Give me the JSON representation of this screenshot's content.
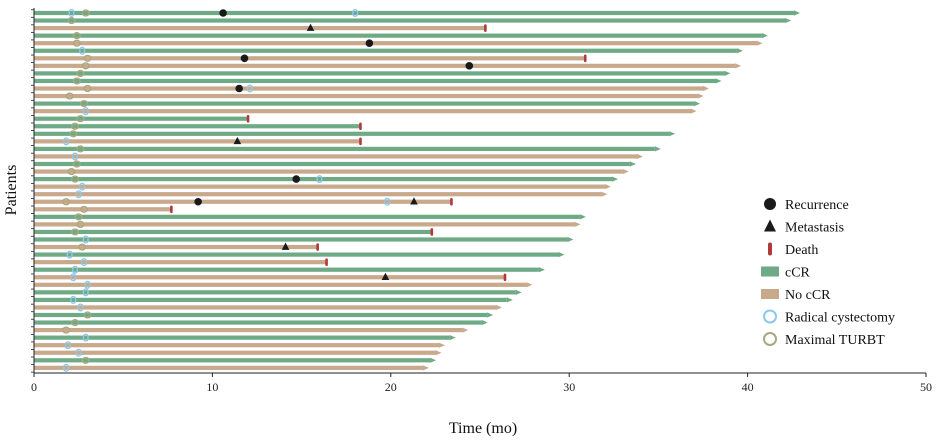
{
  "chart_data": {
    "type": "swimmer",
    "title": "",
    "xlabel": "Time (mo)",
    "ylabel": "Patients",
    "xlim": [
      0,
      50
    ],
    "xticks": [
      0,
      10,
      20,
      30,
      40,
      50
    ],
    "grid": false,
    "legend_position": "right",
    "colors": {
      "ccr": "#6FAA86",
      "no_ccr": "#C8A98C",
      "recurrence": "#1a1a1a",
      "metastasis": "#1a1a1a",
      "death": "#B03A3A",
      "cystectomy": "#8CC8EE",
      "turbt": "#A9A87E"
    },
    "legend": [
      {
        "key": "recurrence",
        "label": "Recurrence"
      },
      {
        "key": "metastasis",
        "label": "Metastasis"
      },
      {
        "key": "death",
        "label": "Death"
      },
      {
        "key": "ccr",
        "label": "cCR"
      },
      {
        "key": "no_ccr",
        "label": "No cCR"
      },
      {
        "key": "cystectomy",
        "label": "Radical cystectomy"
      },
      {
        "key": "turbt",
        "label": "Maximal TURBT"
      }
    ],
    "patients": [
      {
        "end": 42.6,
        "status": "cCR",
        "ongoing": true,
        "cystectomy": [
          2.1,
          18.0
        ],
        "turbt": [
          2.9
        ],
        "recurrence": [
          10.6
        ]
      },
      {
        "end": 42.1,
        "status": "cCR",
        "ongoing": true,
        "turbt": [
          2.1
        ]
      },
      {
        "end": 25.3,
        "status": "No cCR",
        "ongoing": false,
        "death": 25.3,
        "metastasis": [
          15.5
        ]
      },
      {
        "end": 40.8,
        "status": "cCR",
        "ongoing": true,
        "turbt": [
          2.4
        ]
      },
      {
        "end": 40.5,
        "status": "No cCR",
        "ongoing": true,
        "turbt": [
          2.4
        ],
        "recurrence": [
          18.8
        ]
      },
      {
        "end": 39.4,
        "status": "cCR",
        "ongoing": true,
        "cystectomy": [
          2.7
        ]
      },
      {
        "end": 30.9,
        "status": "No cCR",
        "ongoing": false,
        "death": 30.9,
        "turbt": [
          3.0
        ],
        "recurrence": [
          11.8
        ]
      },
      {
        "end": 39.3,
        "status": "No cCR",
        "ongoing": true,
        "turbt": [
          2.9
        ],
        "recurrence": [
          24.4
        ]
      },
      {
        "end": 38.7,
        "status": "cCR",
        "ongoing": true,
        "turbt": [
          2.6
        ]
      },
      {
        "end": 38.2,
        "status": "cCR",
        "ongoing": true,
        "turbt": [
          2.4
        ]
      },
      {
        "end": 37.5,
        "status": "No cCR",
        "ongoing": true,
        "turbt": [
          3.0
        ],
        "cystectomy": [
          12.1
        ],
        "recurrence": [
          11.5
        ]
      },
      {
        "end": 37.2,
        "status": "No cCR",
        "ongoing": true,
        "turbt": [
          2.0
        ]
      },
      {
        "end": 37.0,
        "status": "cCR",
        "ongoing": true,
        "turbt": [
          2.8
        ]
      },
      {
        "end": 36.8,
        "status": "No cCR",
        "ongoing": true,
        "cystectomy": [
          2.9
        ]
      },
      {
        "end": 12.0,
        "status": "cCR",
        "ongoing": false,
        "death": 12.0,
        "turbt": [
          2.6
        ]
      },
      {
        "end": 18.3,
        "status": "cCR",
        "ongoing": false,
        "death": 18.3,
        "turbt": [
          2.3
        ]
      },
      {
        "end": 35.6,
        "status": "cCR",
        "ongoing": true,
        "turbt": [
          2.2
        ]
      },
      {
        "end": 18.3,
        "status": "No cCR",
        "ongoing": false,
        "death": 18.3,
        "cystectomy": [
          1.8
        ],
        "metastasis": [
          11.4
        ]
      },
      {
        "end": 34.8,
        "status": "cCR",
        "ongoing": true,
        "turbt": [
          2.6
        ]
      },
      {
        "end": 33.8,
        "status": "No cCR",
        "ongoing": true,
        "cystectomy": [
          2.3
        ]
      },
      {
        "end": 33.4,
        "status": "cCR",
        "ongoing": true,
        "turbt": [
          2.4
        ]
      },
      {
        "end": 33.0,
        "status": "No cCR",
        "ongoing": true,
        "turbt": [
          2.1
        ]
      },
      {
        "end": 32.4,
        "status": "cCR",
        "ongoing": true,
        "turbt": [
          2.3
        ],
        "cystectomy": [
          16.0
        ],
        "recurrence": [
          14.7
        ]
      },
      {
        "end": 32.0,
        "status": "No cCR",
        "ongoing": true,
        "cystectomy": [
          2.7
        ]
      },
      {
        "end": 31.8,
        "status": "No cCR",
        "ongoing": true,
        "cystectomy": [
          2.5
        ]
      },
      {
        "end": 23.4,
        "status": "No cCR",
        "ongoing": false,
        "death": 23.4,
        "turbt": [
          1.8
        ],
        "cystectomy": [
          19.8
        ],
        "recurrence": [
          9.2
        ],
        "metastasis": [
          21.3
        ]
      },
      {
        "end": 7.7,
        "status": "No cCR",
        "ongoing": false,
        "death": 7.7,
        "turbt": [
          2.8
        ]
      },
      {
        "end": 30.6,
        "status": "cCR",
        "ongoing": true,
        "turbt": [
          2.5
        ]
      },
      {
        "end": 30.3,
        "status": "No cCR",
        "ongoing": true,
        "turbt": [
          2.6
        ]
      },
      {
        "end": 22.3,
        "status": "cCR",
        "ongoing": false,
        "death": 22.3,
        "turbt": [
          2.3
        ]
      },
      {
        "end": 29.9,
        "status": "cCR",
        "ongoing": true,
        "cystectomy": [
          2.9
        ]
      },
      {
        "end": 15.9,
        "status": "No cCR",
        "ongoing": false,
        "death": 15.9,
        "turbt": [
          2.7
        ],
        "metastasis": [
          14.1
        ]
      },
      {
        "end": 29.4,
        "status": "cCR",
        "ongoing": true,
        "cystectomy": [
          2.0
        ]
      },
      {
        "end": 16.4,
        "status": "No cCR",
        "ongoing": false,
        "death": 16.4,
        "cystectomy": [
          2.8
        ]
      },
      {
        "end": 28.3,
        "status": "cCR",
        "ongoing": true,
        "cystectomy": [
          2.3
        ]
      },
      {
        "end": 26.4,
        "status": "No cCR",
        "ongoing": false,
        "death": 26.4,
        "cystectomy": [
          2.2
        ],
        "metastasis": [
          19.7
        ]
      },
      {
        "end": 27.6,
        "status": "No cCR",
        "ongoing": true,
        "cystectomy": [
          3.0
        ]
      },
      {
        "end": 27.0,
        "status": "cCR",
        "ongoing": true,
        "cystectomy": [
          2.9
        ]
      },
      {
        "end": 26.5,
        "status": "cCR",
        "ongoing": true,
        "cystectomy": [
          2.2
        ]
      },
      {
        "end": 25.9,
        "status": "No cCR",
        "ongoing": true,
        "cystectomy": [
          2.6
        ]
      },
      {
        "end": 25.4,
        "status": "cCR",
        "ongoing": true,
        "turbt": [
          3.0
        ]
      },
      {
        "end": 25.1,
        "status": "cCR",
        "ongoing": true,
        "turbt": [
          2.3
        ]
      },
      {
        "end": 24.0,
        "status": "No cCR",
        "ongoing": true,
        "turbt": [
          1.8
        ]
      },
      {
        "end": 23.3,
        "status": "cCR",
        "ongoing": true,
        "cystectomy": [
          2.9
        ]
      },
      {
        "end": 22.7,
        "status": "No cCR",
        "ongoing": true,
        "cystectomy": [
          1.9
        ]
      },
      {
        "end": 22.5,
        "status": "No cCR",
        "ongoing": true,
        "cystectomy": [
          2.5
        ]
      },
      {
        "end": 22.2,
        "status": "cCR",
        "ongoing": true,
        "turbt": [
          2.9
        ]
      },
      {
        "end": 21.8,
        "status": "No cCR",
        "ongoing": true,
        "cystectomy": [
          1.8
        ]
      }
    ]
  }
}
